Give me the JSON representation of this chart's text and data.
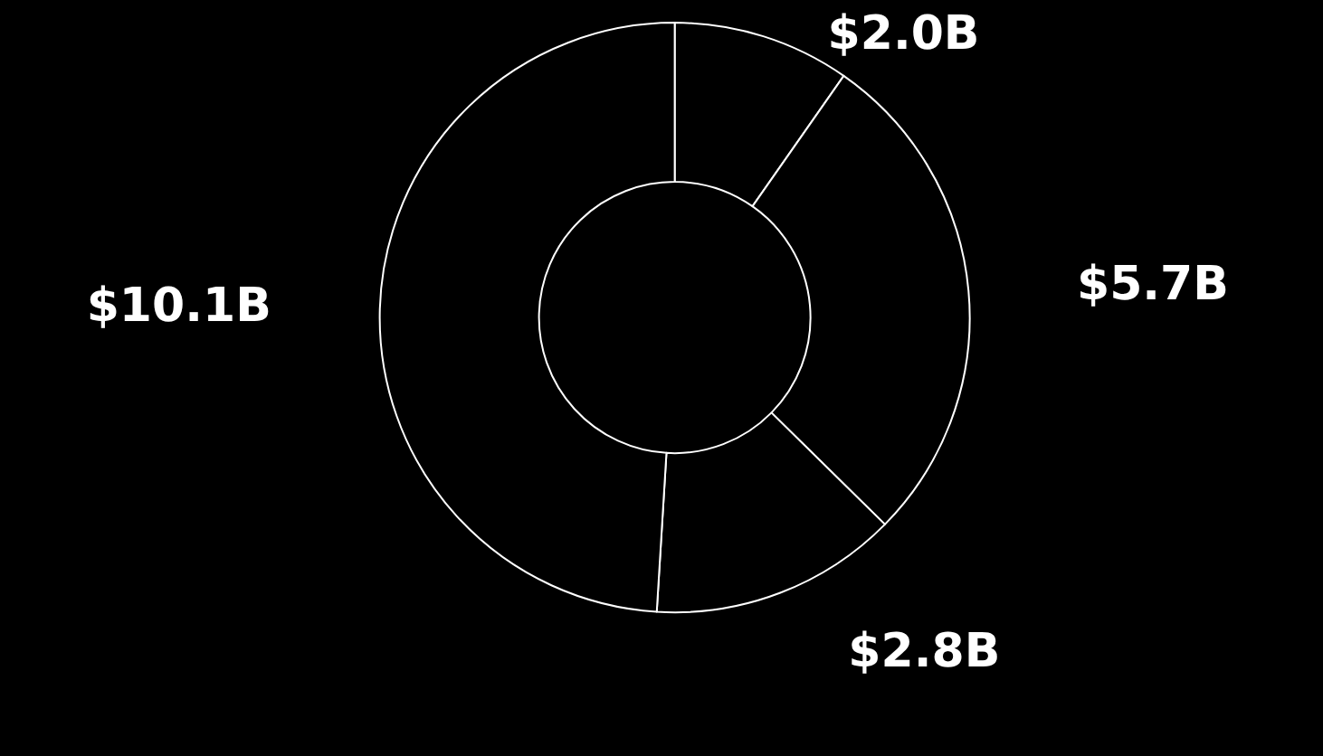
{
  "chart_data": {
    "type": "donut",
    "categories": [
      null,
      null,
      null,
      null
    ],
    "values": [
      2.0,
      5.7,
      2.8,
      10.1
    ],
    "colors": [
      "#000000",
      "#000000",
      "#000000",
      "#000000"
    ],
    "value_labels": [
      "$2.0B",
      "$5.7B",
      "$2.8B",
      "$10.1B"
    ]
  }
}
